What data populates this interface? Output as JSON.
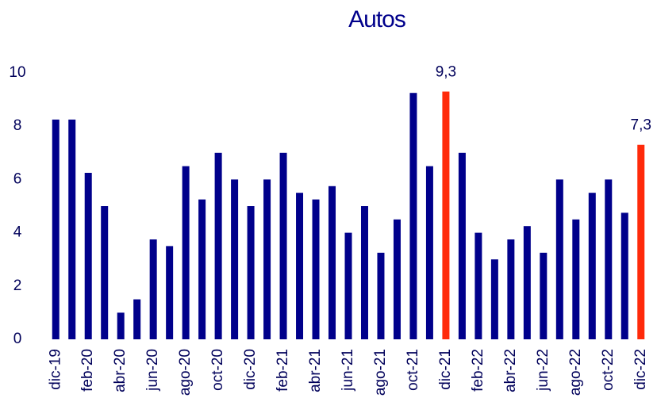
{
  "chart_data": {
    "type": "bar",
    "title": "Autos",
    "categories": [
      "dic-19",
      null,
      "feb-20",
      null,
      "abr-20",
      null,
      "jun-20",
      null,
      "ago-20",
      null,
      "oct-20",
      null,
      "dic-20",
      null,
      "feb-21",
      null,
      "abr-21",
      null,
      "jun-21",
      null,
      "ago-21",
      null,
      "oct-21",
      null,
      "dic-21",
      null,
      "feb-22",
      null,
      "abr-22",
      null,
      "jun-22",
      null,
      "ago-22",
      null,
      "oct-22",
      null,
      "dic-22"
    ],
    "values": [
      8.25,
      8.25,
      6.25,
      5.0,
      1.0,
      1.5,
      3.75,
      3.5,
      6.5,
      5.25,
      7.0,
      6.0,
      5.0,
      6.0,
      7.0,
      5.5,
      5.25,
      5.75,
      4.0,
      5.0,
      3.25,
      4.5,
      9.25,
      6.5,
      9.3,
      7.0,
      4.0,
      3.0,
      3.75,
      4.25,
      3.25,
      6.0,
      4.5,
      5.5,
      6.0,
      4.75,
      7.3
    ],
    "value_labels": [
      null,
      null,
      null,
      null,
      null,
      null,
      null,
      null,
      null,
      null,
      null,
      null,
      null,
      null,
      null,
      null,
      null,
      null,
      null,
      null,
      null,
      null,
      null,
      null,
      "9,3",
      null,
      null,
      null,
      null,
      null,
      null,
      null,
      null,
      null,
      null,
      null,
      "7,3"
    ],
    "colors": [
      "#00008b",
      "#00008b",
      "#00008b",
      "#00008b",
      "#00008b",
      "#00008b",
      "#00008b",
      "#00008b",
      "#00008b",
      "#00008b",
      "#00008b",
      "#00008b",
      "#00008b",
      "#00008b",
      "#00008b",
      "#00008b",
      "#00008b",
      "#00008b",
      "#00008b",
      "#00008b",
      "#00008b",
      "#00008b",
      "#00008b",
      "#00008b",
      "#ff2a0a",
      "#00008b",
      "#00008b",
      "#00008b",
      "#00008b",
      "#00008b",
      "#00008b",
      "#00008b",
      "#00008b",
      "#00008b",
      "#00008b",
      "#00008b",
      "#ff2a0a"
    ],
    "ylim": [
      0,
      10
    ],
    "yticks": [
      0,
      2,
      4,
      6,
      8,
      10
    ],
    "grid": false
  }
}
